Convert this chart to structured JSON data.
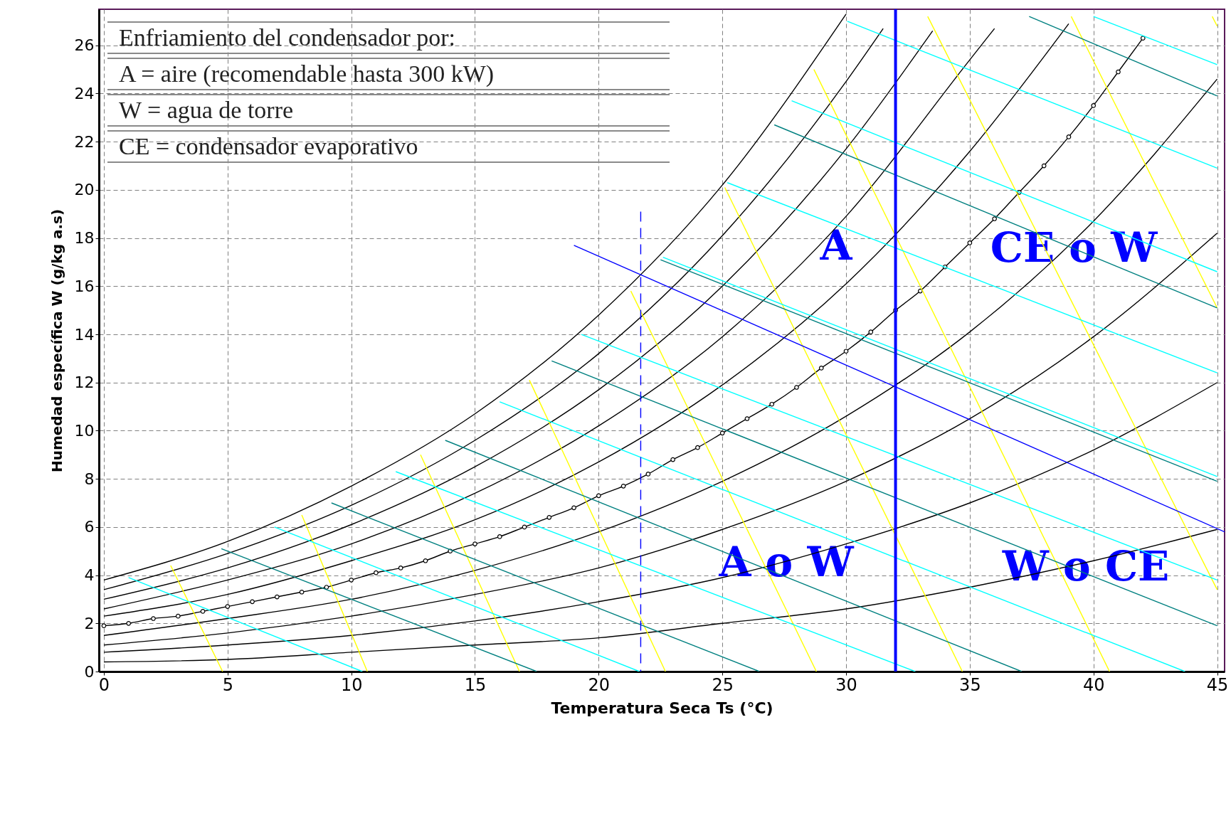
{
  "chart_data": {
    "type": "line",
    "xlabel": "Temperatura Seca   Ts (°C)",
    "ylabel": "Humedad específica  W   (g/kg a.s)",
    "xlim": [
      -0.2,
      45.3
    ],
    "ylim": [
      0,
      27.5
    ],
    "xticks": [
      0,
      5,
      10,
      15,
      20,
      25,
      30,
      35,
      40,
      45
    ],
    "yticks": [
      0,
      2,
      4,
      6,
      8,
      10,
      12,
      14,
      16,
      18,
      20,
      22,
      24,
      26
    ],
    "grid": true,
    "marker": "none",
    "line_style": "solid",
    "series": [
      {
        "color": "#000000",
        "x": [
          0,
          5,
          10,
          15,
          20,
          25,
          30
        ],
        "values": [
          3.8,
          5.4,
          7.7,
          10.7,
          14.8,
          20.2,
          27.3
        ]
      },
      {
        "color": "#000000",
        "x": [
          0,
          5,
          10,
          15,
          20,
          25,
          30,
          31.5
        ],
        "values": [
          3.4,
          4.9,
          6.9,
          9.6,
          13.2,
          18.1,
          24.5,
          26.7
        ]
      },
      {
        "color": "#000000",
        "x": [
          0,
          5,
          10,
          15,
          20,
          25,
          30,
          33.5
        ],
        "values": [
          3.0,
          4.3,
          6.1,
          8.5,
          11.7,
          16.0,
          21.7,
          26.6
        ]
      },
      {
        "color": "#000000",
        "x": [
          0,
          5,
          10,
          15,
          20,
          25,
          30,
          35,
          36
        ],
        "values": [
          2.6,
          3.8,
          5.3,
          7.4,
          10.2,
          13.9,
          18.9,
          25.4,
          26.7
        ]
      },
      {
        "color": "#000000",
        "x": [
          0,
          5,
          10,
          15,
          20,
          25,
          30,
          35,
          39
        ],
        "values": [
          2.3,
          3.2,
          4.6,
          6.3,
          8.7,
          11.9,
          16.1,
          21.6,
          26.9
        ]
      },
      {
        "color": "#000000",
        "marker": "circle",
        "x": [
          0,
          1,
          2,
          3,
          4,
          5,
          6,
          7,
          8,
          9,
          10,
          11,
          12,
          13,
          14,
          15,
          16,
          17,
          18,
          19,
          20,
          21,
          22,
          23,
          24,
          25,
          26,
          27,
          28,
          29,
          30,
          31,
          32,
          33,
          34,
          35,
          36,
          37,
          38,
          39,
          40,
          41,
          42
        ],
        "values": [
          1.9,
          2.0,
          2.2,
          2.3,
          2.5,
          2.7,
          2.9,
          3.1,
          3.3,
          3.5,
          3.8,
          4.1,
          4.3,
          4.6,
          5.0,
          5.3,
          5.6,
          6.0,
          6.4,
          6.8,
          7.3,
          7.7,
          8.2,
          8.8,
          9.3,
          9.9,
          10.5,
          11.1,
          11.8,
          12.6,
          13.3,
          14.1,
          15.0,
          15.8,
          16.8,
          17.8,
          18.8,
          19.9,
          21.0,
          22.2,
          23.5,
          24.9,
          26.3
        ]
      },
      {
        "color": "#000000",
        "x": [
          0,
          5,
          10,
          15,
          20,
          25,
          30,
          35,
          40,
          45
        ],
        "values": [
          1.5,
          2.2,
          3.0,
          4.2,
          5.8,
          7.9,
          10.6,
          14.1,
          18.7,
          24.6
        ]
      },
      {
        "color": "#000000",
        "x": [
          0,
          5,
          10,
          15,
          20,
          25,
          30,
          35,
          40,
          45
        ],
        "values": [
          1.1,
          1.6,
          2.3,
          3.2,
          4.3,
          5.9,
          7.9,
          10.5,
          13.9,
          18.2
        ]
      },
      {
        "color": "#000000",
        "x": [
          0,
          5,
          10,
          15,
          20,
          25,
          30,
          35,
          40,
          45
        ],
        "values": [
          0.8,
          1.1,
          1.5,
          2.1,
          2.9,
          3.9,
          5.3,
          7.0,
          9.2,
          12.0
        ]
      },
      {
        "color": "#000000",
        "x": [
          0,
          5,
          10,
          15,
          20,
          25,
          30,
          35,
          40,
          45
        ],
        "values": [
          0.4,
          0.5,
          0.8,
          1.1,
          1.4,
          2.0,
          2.6,
          3.5,
          4.6,
          5.9
        ]
      },
      {
        "color": "#ffff00",
        "x": [
          2.7,
          4.8
        ],
        "values": [
          4.4,
          0
        ]
      },
      {
        "color": "#ffff00",
        "x": [
          8.0,
          10.65
        ],
        "values": [
          6.5,
          0
        ]
      },
      {
        "color": "#ffff00",
        "x": [
          12.8,
          16.8
        ],
        "values": [
          9.0,
          0
        ]
      },
      {
        "color": "#ffff00",
        "x": [
          17.2,
          22.7
        ],
        "values": [
          12.1,
          0
        ]
      },
      {
        "color": "#ffff00",
        "x": [
          21.3,
          28.8
        ],
        "values": [
          15.8,
          0
        ]
      },
      {
        "color": "#ffff00",
        "x": [
          25.1,
          34.7
        ],
        "values": [
          20.1,
          0
        ]
      },
      {
        "color": "#ffff00",
        "x": [
          28.7,
          40.65
        ],
        "values": [
          25.0,
          0
        ]
      },
      {
        "color": "#ffff00",
        "x": [
          33.3,
          45
        ],
        "values": [
          27.2,
          3.4
        ]
      },
      {
        "color": "#ffff00",
        "x": [
          39.1,
          45
        ],
        "values": [
          27.2,
          15.1
        ]
      },
      {
        "color": "#ffff00",
        "x": [
          44.8,
          45
        ],
        "values": [
          27.2,
          26.8
        ]
      },
      {
        "color": "#00ffff",
        "x": [
          1.0,
          10.45
        ],
        "values": [
          3.9,
          0
        ]
      },
      {
        "color": "#00ffff",
        "x": [
          6.9,
          21.65
        ],
        "values": [
          6.0,
          0
        ]
      },
      {
        "color": "#00ffff",
        "x": [
          11.8,
          32.8
        ],
        "values": [
          8.3,
          0
        ]
      },
      {
        "color": "#00ffff",
        "x": [
          16.0,
          43.7
        ],
        "values": [
          11.2,
          0
        ]
      },
      {
        "color": "#00ffff",
        "x": [
          19.3,
          45
        ],
        "values": [
          14.0,
          3.8
        ]
      },
      {
        "color": "#00ffff",
        "x": [
          22.6,
          45
        ],
        "values": [
          17.2,
          8.1
        ]
      },
      {
        "color": "#00ffff",
        "x": [
          25.2,
          45
        ],
        "values": [
          20.3,
          12.4
        ]
      },
      {
        "color": "#00ffff",
        "x": [
          27.8,
          45
        ],
        "values": [
          23.7,
          16.6
        ]
      },
      {
        "color": "#00ffff",
        "x": [
          30.05,
          45
        ],
        "values": [
          27.0,
          20.9
        ]
      },
      {
        "color": "#00ffff",
        "x": [
          40.0,
          45
        ],
        "values": [
          27.2,
          25.2
        ]
      },
      {
        "color": "#008080",
        "x": [
          4.75,
          17.5
        ],
        "values": [
          5.1,
          0
        ]
      },
      {
        "color": "#008080",
        "x": [
          9.2,
          26.5
        ],
        "values": [
          7.0,
          0
        ]
      },
      {
        "color": "#008080",
        "x": [
          13.8,
          37.1
        ],
        "values": [
          9.6,
          0
        ]
      },
      {
        "color": "#008080",
        "x": [
          18.1,
          45
        ],
        "values": [
          12.9,
          1.9
        ]
      },
      {
        "color": "#008080",
        "x": [
          22.5,
          45
        ],
        "values": [
          17.1,
          7.9
        ]
      },
      {
        "color": "#008080",
        "x": [
          27.1,
          45
        ],
        "values": [
          22.7,
          15.1
        ]
      },
      {
        "color": "#008080",
        "x": [
          37.4,
          45
        ],
        "values": [
          27.2,
          23.9
        ]
      },
      {
        "color": "#0000ff",
        "line_style": "dashed",
        "x": [
          21.7,
          21.7
        ],
        "values": [
          19.1,
          0
        ]
      },
      {
        "color": "#0000ff",
        "x": [
          19.0,
          45.3
        ],
        "values": [
          17.7,
          5.8
        ]
      }
    ],
    "ref_lines": [
      {
        "axis": "x",
        "value": 32.0,
        "color": "#0000ff"
      }
    ],
    "annotations": [
      "Enfriamiento del condensador por:",
      "A = aire (recomendable hasta 300 kW)",
      "W = agua de torre",
      "CE = condensador evaporativo",
      "A",
      "CE o W",
      "A o W",
      "W o CE"
    ]
  }
}
